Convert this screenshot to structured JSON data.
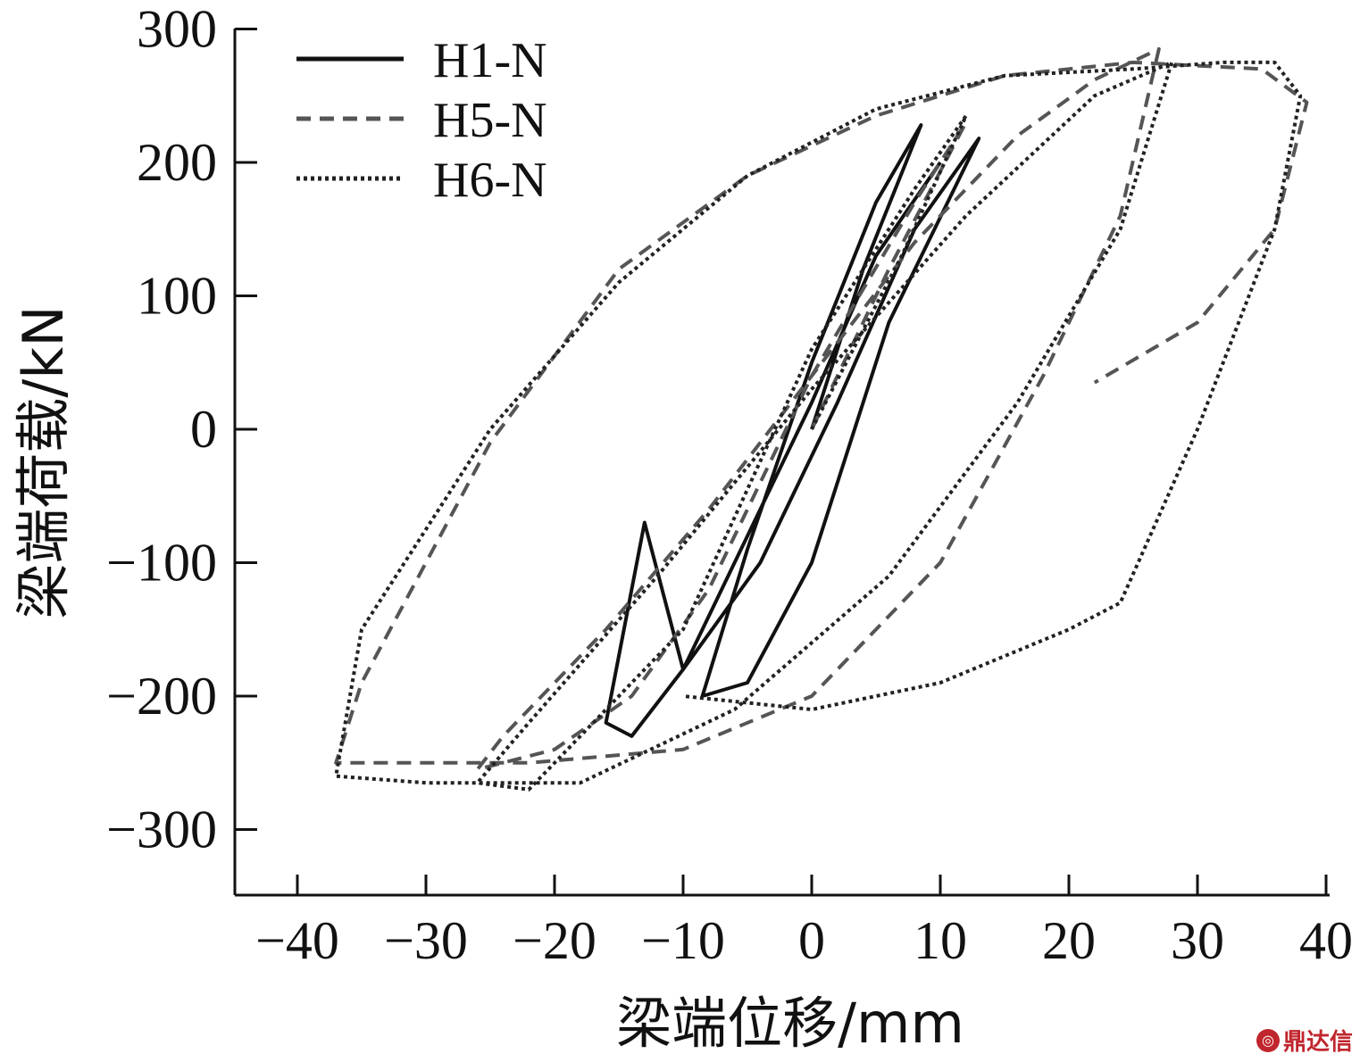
{
  "chart_data": {
    "type": "line",
    "xlabel": "梁端位移/mm",
    "ylabel": "梁端荷载/kN",
    "xlim": [
      -45,
      40
    ],
    "ylim": [
      -350,
      300
    ],
    "x_ticks": [
      -40,
      -30,
      -20,
      -10,
      0,
      10,
      20,
      30,
      40
    ],
    "x_tick_labels": [
      "−40",
      "−30",
      "−20",
      "−10",
      "0",
      "10",
      "20",
      "30",
      "40"
    ],
    "y_ticks": [
      -300,
      -200,
      -100,
      0,
      100,
      200,
      300
    ],
    "y_tick_labels": [
      "−300",
      "−200",
      "−100",
      "0",
      "100",
      "200",
      "300"
    ],
    "legend_position": "top-left",
    "grid": false,
    "series": [
      {
        "name": "H1-N",
        "color": "#111111",
        "dash": "solid",
        "x": [
          0,
          4,
          8.5,
          5,
          0,
          -5,
          -8.5,
          -5,
          0,
          6,
          13,
          8,
          2,
          -4,
          -10,
          -13,
          -16,
          -14,
          -10,
          -5,
          0,
          5,
          10
        ],
        "y": [
          0,
          120,
          228,
          170,
          50,
          -90,
          -200,
          -190,
          -100,
          80,
          218,
          150,
          20,
          -100,
          -180,
          -70,
          -220,
          -230,
          -180,
          -80,
          20,
          130,
          200
        ]
      },
      {
        "name": "H5-N",
        "color": "#555555",
        "dash": "dashed",
        "x": [
          0,
          6,
          12,
          8,
          0,
          -8,
          -14,
          -20,
          -26,
          -24,
          -16,
          -8,
          0,
          8,
          16,
          22,
          27,
          24,
          18,
          10,
          0,
          -10,
          -22,
          -32,
          -37,
          -35,
          -25,
          -15,
          -5,
          5,
          15,
          25,
          35,
          38.5,
          36,
          30,
          22
        ],
        "y": [
          0,
          120,
          230,
          170,
          40,
          -120,
          -200,
          -240,
          -255,
          -230,
          -150,
          -60,
          40,
          140,
          220,
          262,
          285,
          160,
          40,
          -100,
          -200,
          -240,
          -250,
          -250,
          -250,
          -190,
          -10,
          120,
          190,
          235,
          265,
          275,
          270,
          245,
          150,
          80,
          35
        ]
      },
      {
        "name": "H6-N",
        "color": "#222222",
        "dash": "dotted",
        "x": [
          0,
          7,
          12,
          8,
          0,
          -10,
          -18,
          -22,
          -26,
          -22,
          -12,
          0,
          12,
          22,
          28,
          24,
          16,
          6,
          -6,
          -18,
          -30,
          -37,
          -35,
          -25,
          -15,
          -5,
          5,
          15,
          25,
          32,
          36,
          38,
          36,
          30,
          24,
          20,
          10,
          0,
          -10
        ],
        "y": [
          0,
          130,
          235,
          180,
          60,
          -150,
          -230,
          -270,
          -265,
          -220,
          -110,
          30,
          160,
          250,
          275,
          150,
          20,
          -110,
          -210,
          -265,
          -265,
          -260,
          -150,
          0,
          110,
          190,
          240,
          265,
          270,
          275,
          275,
          250,
          150,
          0,
          -130,
          -150,
          -190,
          -210,
          -200
        ]
      }
    ]
  },
  "watermark": "鼎达信"
}
